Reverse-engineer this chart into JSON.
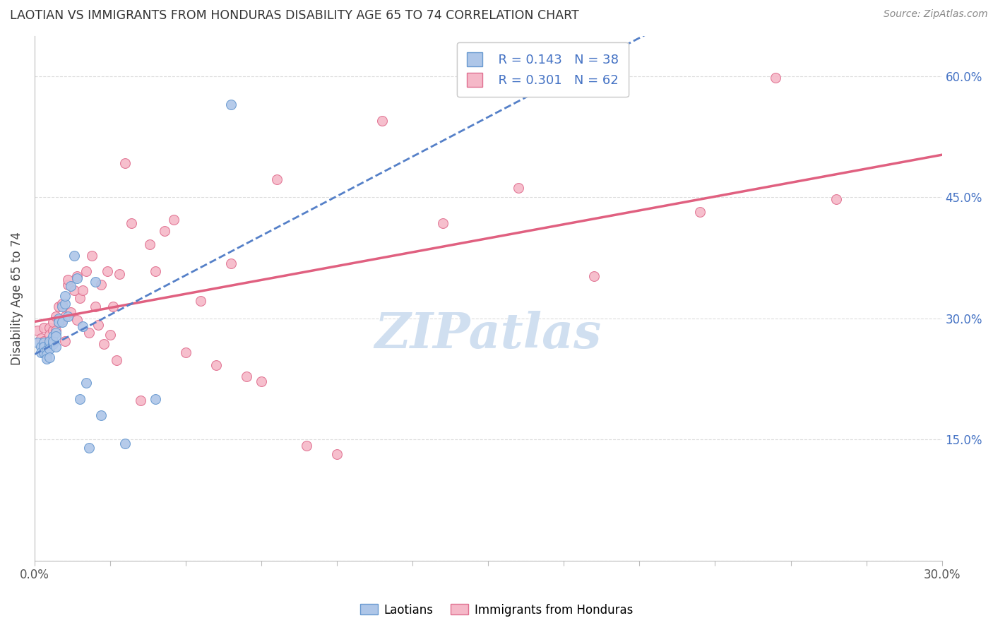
{
  "title": "LAOTIAN VS IMMIGRANTS FROM HONDURAS DISABILITY AGE 65 TO 74 CORRELATION CHART",
  "source": "Source: ZipAtlas.com",
  "ylabel": "Disability Age 65 to 74",
  "xlim": [
    0.0,
    0.3
  ],
  "ylim": [
    0.0,
    0.65
  ],
  "yticks": [
    0.0,
    0.15,
    0.3,
    0.45,
    0.6
  ],
  "ytick_labels": [
    "",
    "15.0%",
    "30.0%",
    "45.0%",
    "60.0%"
  ],
  "blue_color": "#aec6e8",
  "pink_color": "#f5b8c8",
  "blue_edge_color": "#6899d0",
  "pink_edge_color": "#e07090",
  "blue_line_color": "#5580c8",
  "pink_line_color": "#e06080",
  "legend_color": "#4472c4",
  "watermark": "ZIPatlas",
  "watermark_color": "#d0dff0",
  "laotian_x": [
    0.001,
    0.002,
    0.002,
    0.003,
    0.003,
    0.003,
    0.004,
    0.004,
    0.004,
    0.005,
    0.005,
    0.005,
    0.005,
    0.006,
    0.006,
    0.006,
    0.007,
    0.007,
    0.007,
    0.008,
    0.008,
    0.009,
    0.009,
    0.01,
    0.01,
    0.011,
    0.012,
    0.013,
    0.014,
    0.015,
    0.016,
    0.017,
    0.018,
    0.02,
    0.022,
    0.03,
    0.04,
    0.065
  ],
  "laotian_y": [
    0.27,
    0.265,
    0.258,
    0.27,
    0.265,
    0.258,
    0.26,
    0.255,
    0.25,
    0.268,
    0.272,
    0.262,
    0.252,
    0.268,
    0.278,
    0.272,
    0.282,
    0.278,
    0.265,
    0.3,
    0.295,
    0.315,
    0.295,
    0.318,
    0.328,
    0.302,
    0.34,
    0.378,
    0.35,
    0.2,
    0.29,
    0.22,
    0.14,
    0.345,
    0.18,
    0.145,
    0.2,
    0.565
  ],
  "honduras_x": [
    0.001,
    0.002,
    0.003,
    0.003,
    0.004,
    0.004,
    0.005,
    0.005,
    0.005,
    0.006,
    0.006,
    0.007,
    0.007,
    0.008,
    0.008,
    0.009,
    0.009,
    0.01,
    0.01,
    0.011,
    0.011,
    0.012,
    0.013,
    0.014,
    0.014,
    0.015,
    0.016,
    0.017,
    0.018,
    0.019,
    0.02,
    0.021,
    0.022,
    0.023,
    0.024,
    0.025,
    0.026,
    0.027,
    0.028,
    0.03,
    0.032,
    0.035,
    0.038,
    0.04,
    0.043,
    0.046,
    0.05,
    0.055,
    0.06,
    0.065,
    0.07,
    0.075,
    0.08,
    0.09,
    0.1,
    0.115,
    0.135,
    0.16,
    0.185,
    0.22,
    0.245,
    0.265
  ],
  "honduras_y": [
    0.285,
    0.275,
    0.272,
    0.288,
    0.268,
    0.262,
    0.288,
    0.28,
    0.272,
    0.285,
    0.295,
    0.302,
    0.285,
    0.295,
    0.315,
    0.298,
    0.318,
    0.302,
    0.272,
    0.342,
    0.348,
    0.308,
    0.335,
    0.298,
    0.352,
    0.325,
    0.335,
    0.358,
    0.282,
    0.378,
    0.315,
    0.292,
    0.342,
    0.268,
    0.358,
    0.28,
    0.315,
    0.248,
    0.355,
    0.492,
    0.418,
    0.198,
    0.392,
    0.358,
    0.408,
    0.422,
    0.258,
    0.322,
    0.242,
    0.368,
    0.228,
    0.222,
    0.472,
    0.142,
    0.132,
    0.545,
    0.418,
    0.462,
    0.352,
    0.432,
    0.598,
    0.448
  ]
}
